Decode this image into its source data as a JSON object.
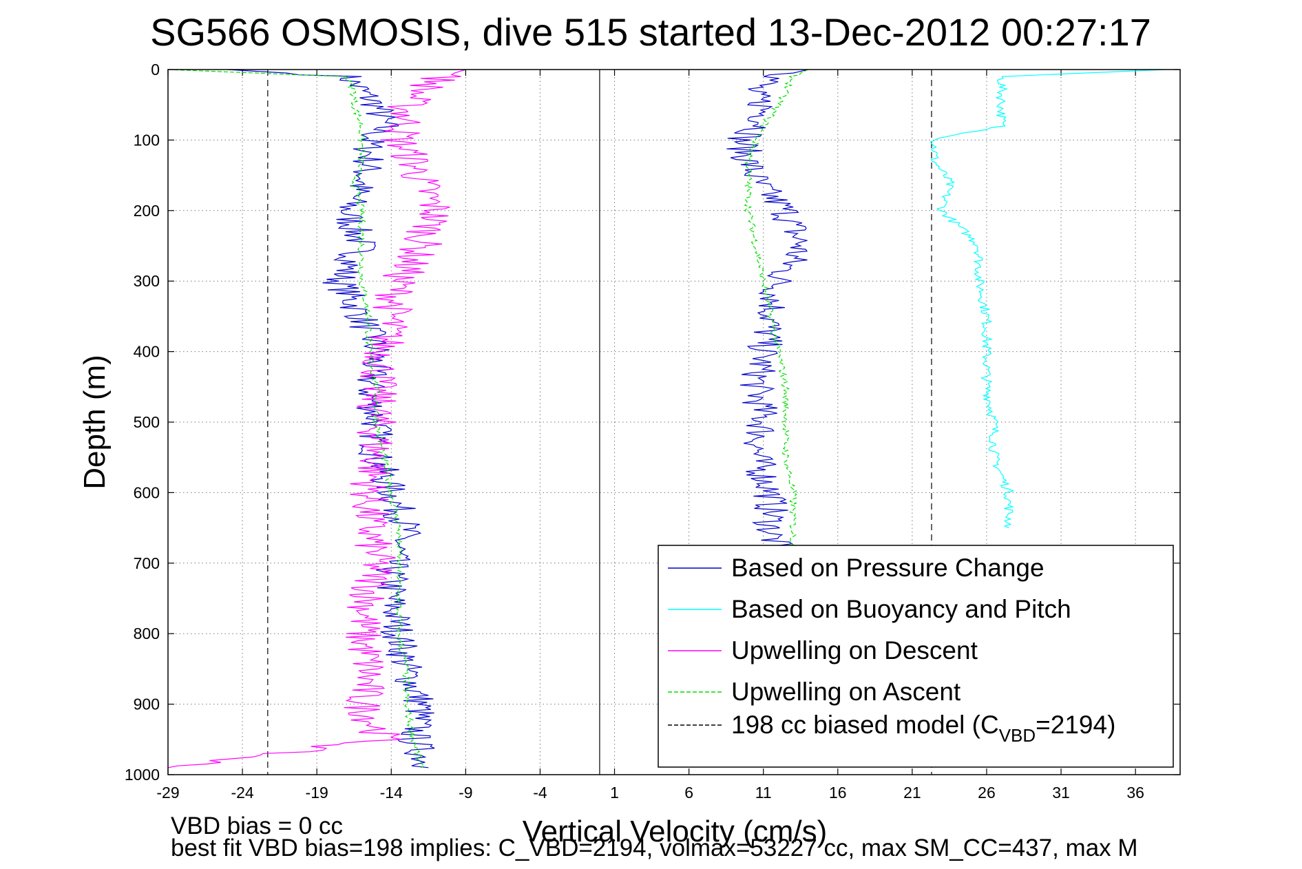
{
  "chart_data": {
    "type": "line",
    "title": "SG566 OSMOSIS, dive 515 started 13-Dec-2012 00:27:17",
    "xlabel": "Vertical Velocity (cm/s)",
    "ylabel": "Depth (m)",
    "xlim": [
      -29,
      39
    ],
    "ylim": [
      1000,
      0
    ],
    "x_ticks": [
      -29,
      -24,
      -19,
      -14,
      -9,
      -4,
      1,
      6,
      11,
      16,
      21,
      26,
      31,
      36
    ],
    "y_ticks": [
      0,
      100,
      200,
      300,
      400,
      500,
      600,
      700,
      800,
      900,
      1000
    ],
    "grid": true,
    "legend_position": "bottom-right",
    "reference_lines": [
      {
        "name": "zero",
        "x": 0
      },
      {
        "name": "model_descent",
        "x": -22.3
      },
      {
        "name": "model_ascent",
        "x": 22.3
      }
    ],
    "series": [
      {
        "name": "Based on Pressure Change",
        "color": "#0000cc",
        "style": "solid",
        "profiles": [
          {
            "depth": [
              0,
              10,
              30,
              50,
              80,
              100,
              130,
              160,
              200,
              250,
              300,
              350,
              400,
              450,
              500,
              550,
              600,
              650,
              700,
              750,
              800,
              850,
              900,
              950,
              990
            ],
            "x": [
              -25,
              -17,
              -16,
              -15,
              -14.5,
              -15.5,
              -15.5,
              -16,
              -17,
              -16,
              -17.5,
              -16,
              -15,
              -15.5,
              -15,
              -15,
              -14,
              -13,
              -14,
              -14,
              -13.5,
              -13,
              -12,
              -12.5,
              -11.5
            ]
          },
          {
            "depth": [
              0,
              10,
              30,
              50,
              80,
              100,
              130,
              160,
              200,
              250,
              300,
              350,
              400,
              450,
              500,
              550,
              600,
              650,
              700
            ],
            "x": [
              14,
              12,
              10,
              11,
              11,
              9.5,
              10,
              10.5,
              12.5,
              13.5,
              12,
              11.5,
              11,
              10.5,
              11,
              10.5,
              11.5,
              11.5,
              12
            ]
          }
        ]
      },
      {
        "name": "Based on Buoyancy and Pitch",
        "color": "#00ffff",
        "style": "solid",
        "profiles": [
          {
            "depth": [
              0,
              10,
              30,
              50,
              80,
              100,
              130,
              160,
              200,
              250,
              300,
              350,
              400,
              450,
              500,
              550,
              600,
              650
            ],
            "x": [
              38,
              27,
              27,
              27,
              27,
              22.5,
              22.5,
              23.5,
              23,
              25.5,
              25.5,
              26,
              26,
              26,
              26.5,
              26.5,
              27.5,
              27.5
            ]
          }
        ]
      },
      {
        "name": "Upwelling on Descent",
        "color": "#ff00ff",
        "style": "solid",
        "profiles": [
          {
            "depth": [
              0,
              10,
              30,
              50,
              80,
              100,
              130,
              160,
              200,
              250,
              300,
              350,
              400,
              450,
              500,
              550,
              600,
              650,
              700,
              750,
              800,
              850,
              900,
              950,
              990
            ],
            "x": [
              -9,
              -10.5,
              -12,
              -13,
              -13,
              -13.5,
              -12.5,
              -12,
              -11,
              -12,
              -13.5,
              -14,
              -14.5,
              -15,
              -15,
              -15,
              -15.5,
              -15.5,
              -15,
              -15.5,
              -16,
              -15.5,
              -16,
              -14.5,
              -29
            ]
          }
        ]
      },
      {
        "name": "Upwelling on Ascent",
        "color": "#00dd00",
        "style": "dashed",
        "profiles": [
          {
            "depth": [
              0,
              10,
              30,
              50,
              80,
              100,
              130,
              160,
              200,
              250,
              300,
              350,
              400,
              450,
              500,
              550,
              600,
              650,
              700,
              750,
              800,
              850,
              900,
              950,
              990
            ],
            "x": [
              -29,
              -17,
              -16.5,
              -16.5,
              -16,
              -16,
              -16,
              -16.5,
              -16,
              -16,
              -16,
              -15.5,
              -15.5,
              -15,
              -15,
              -14.5,
              -14,
              -13.5,
              -13.5,
              -13.5,
              -13.5,
              -13,
              -13,
              -12.5,
              -12
            ]
          },
          {
            "depth": [
              0,
              10,
              30,
              50,
              80,
              100,
              130,
              160,
              200,
              250,
              300,
              350,
              400,
              450,
              500,
              550,
              600,
              650,
              700
            ],
            "x": [
              14,
              13,
              12.5,
              12,
              11,
              10.5,
              10,
              10,
              10,
              10.5,
              11,
              11.5,
              12,
              12.5,
              12.5,
              12.5,
              13,
              13,
              13
            ]
          }
        ]
      },
      {
        "name": "198 cc biased model (C_VBD=2194)",
        "color": "#000000",
        "style": "dashed",
        "profiles": []
      }
    ]
  },
  "legend": {
    "items": [
      {
        "text": "Based on Pressure Change"
      },
      {
        "text": "Based on Buoyancy and Pitch"
      },
      {
        "text": "Upwelling on Descent"
      },
      {
        "text": "Upwelling on Ascent"
      },
      {
        "text": "198 cc biased model (C",
        "sub": "VBD",
        "tail": "=2194)"
      }
    ]
  },
  "footer": {
    "line1": "VBD bias = 0 cc",
    "line2": "best fit VBD bias=198 implies: C_VBD=2194, volmax=53227 cc, max SM_CC=437, max M"
  }
}
